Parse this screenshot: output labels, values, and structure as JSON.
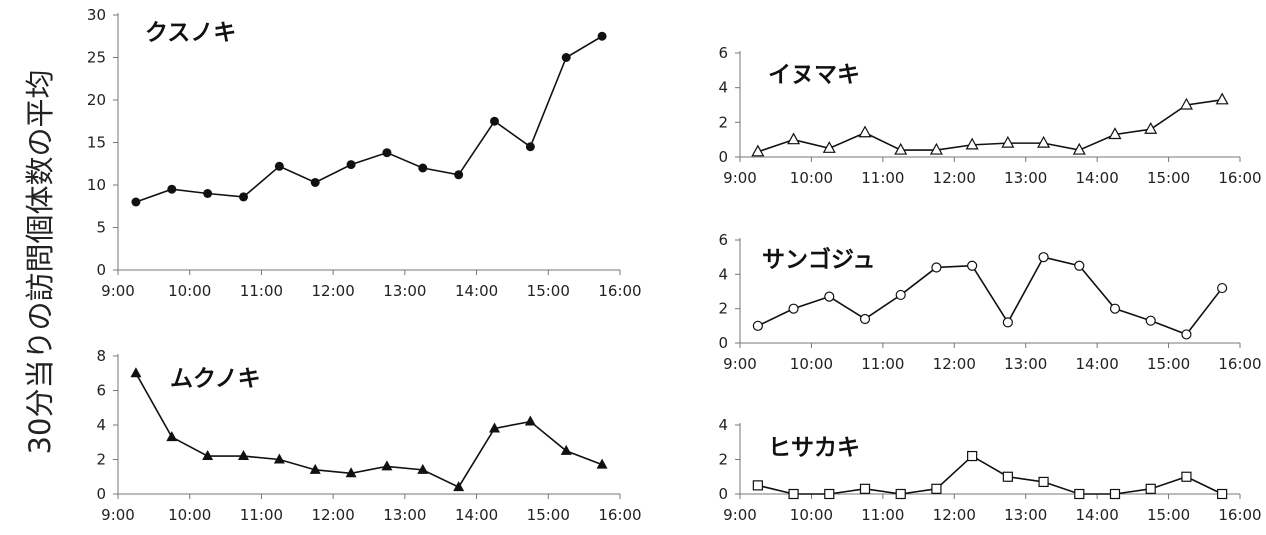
{
  "ylabel": "30分当りの訪問個体数の平均",
  "chart_data": [
    {
      "type": "line",
      "title": "クスノキ",
      "marker": "filled-circle",
      "x": [
        "9:15",
        "9:45",
        "10:15",
        "10:45",
        "11:15",
        "11:45",
        "12:15",
        "12:45",
        "13:15",
        "13:45",
        "14:15",
        "14:45",
        "15:15",
        "15:45"
      ],
      "values": [
        8.0,
        9.5,
        9.0,
        8.6,
        12.2,
        10.3,
        12.4,
        13.8,
        12.0,
        11.2,
        17.5,
        14.5,
        25.0,
        27.5
      ],
      "xticks": [
        "9:00",
        "10:00",
        "11:00",
        "12:00",
        "13:00",
        "14:00",
        "15:00",
        "16:00"
      ],
      "yticks": [
        "0",
        "5",
        "10",
        "15",
        "20",
        "25",
        "30"
      ],
      "ylim": [
        0,
        30
      ]
    },
    {
      "type": "line",
      "title": "ムクノキ",
      "marker": "filled-triangle",
      "x": [
        "9:15",
        "9:45",
        "10:15",
        "10:45",
        "11:15",
        "11:45",
        "12:15",
        "12:45",
        "13:15",
        "13:45",
        "14:15",
        "14:45",
        "15:15",
        "15:45"
      ],
      "values": [
        7.0,
        3.3,
        2.2,
        2.2,
        2.0,
        1.4,
        1.2,
        1.6,
        1.4,
        0.4,
        3.8,
        4.2,
        2.5,
        1.7
      ],
      "xticks": [
        "9:00",
        "10:00",
        "11:00",
        "12:00",
        "13:00",
        "14:00",
        "15:00",
        "16:00"
      ],
      "yticks": [
        "0",
        "2",
        "4",
        "6",
        "8"
      ],
      "ylim": [
        0,
        8
      ]
    },
    {
      "type": "line",
      "title": "イヌマキ",
      "marker": "open-triangle",
      "x": [
        "9:15",
        "9:45",
        "10:15",
        "10:45",
        "11:15",
        "11:45",
        "12:15",
        "12:45",
        "13:15",
        "13:45",
        "14:15",
        "14:45",
        "15:15",
        "15:45"
      ],
      "values": [
        0.3,
        1.0,
        0.5,
        1.4,
        0.4,
        0.4,
        0.7,
        0.8,
        0.8,
        0.4,
        1.3,
        1.6,
        3.0,
        3.3
      ],
      "xticks": [
        "9:00",
        "10:00",
        "11:00",
        "12:00",
        "13:00",
        "14:00",
        "15:00",
        "16:00"
      ],
      "yticks": [
        "0",
        "2",
        "4",
        "6"
      ],
      "ylim": [
        0,
        6
      ]
    },
    {
      "type": "line",
      "title": "サンゴジュ",
      "marker": "open-circle",
      "x": [
        "9:15",
        "9:45",
        "10:15",
        "10:45",
        "11:15",
        "11:45",
        "12:15",
        "12:45",
        "13:15",
        "13:45",
        "14:15",
        "14:45",
        "15:15",
        "15:45"
      ],
      "values": [
        1.0,
        2.0,
        2.7,
        1.4,
        2.8,
        4.4,
        4.5,
        1.2,
        5.0,
        4.5,
        2.0,
        1.3,
        0.5,
        3.2
      ],
      "xticks": [
        "9:00",
        "10:00",
        "11:00",
        "12:00",
        "13:00",
        "14:00",
        "15:00",
        "16:00"
      ],
      "yticks": [
        "0",
        "2",
        "4",
        "6"
      ],
      "ylim": [
        0,
        6
      ]
    },
    {
      "type": "line",
      "title": "ヒサカキ",
      "marker": "open-square",
      "x": [
        "9:15",
        "9:45",
        "10:15",
        "10:45",
        "11:15",
        "11:45",
        "12:15",
        "12:45",
        "13:15",
        "13:45",
        "14:15",
        "14:45",
        "15:15",
        "15:45"
      ],
      "values": [
        0.5,
        0.0,
        0.0,
        0.3,
        0.0,
        0.3,
        2.2,
        1.0,
        0.7,
        0.0,
        0.0,
        0.3,
        1.0,
        0.0
      ],
      "xticks": [
        "9:00",
        "10:00",
        "11:00",
        "12:00",
        "13:00",
        "14:00",
        "15:00",
        "16:00"
      ],
      "yticks": [
        "0",
        "2",
        "4"
      ],
      "ylim": [
        0,
        4
      ]
    }
  ]
}
